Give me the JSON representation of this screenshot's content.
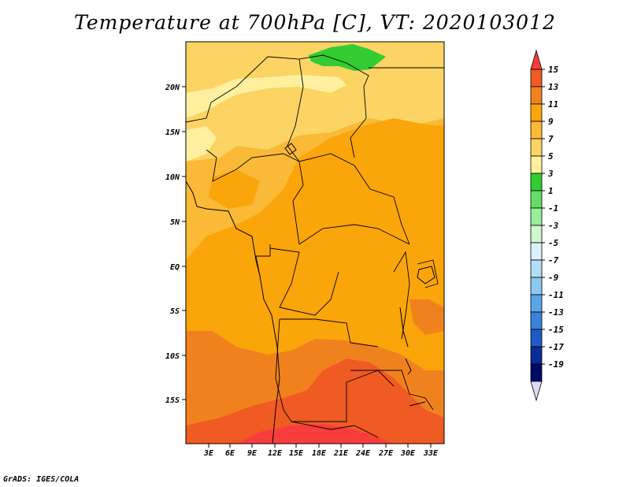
{
  "title": "Temperature at 700hPa [C], VT: 2020103012",
  "credit": "GrADS: IGES/COLA",
  "map": {
    "lat_labels": [
      "20N",
      "15N",
      "10N",
      "5N",
      "EQ",
      "5S",
      "10S",
      "15S"
    ],
    "lon_labels": [
      "3E",
      "6E",
      "9E",
      "12E",
      "15E",
      "18E",
      "21E",
      "24E",
      "27E",
      "30E",
      "33E"
    ]
  },
  "colorbar": {
    "labels": [
      "15",
      "13",
      "11",
      "9",
      "7",
      "5",
      "3",
      "1",
      "-1",
      "-3",
      "-5",
      "-7",
      "-9",
      "-11",
      "-13",
      "-15",
      "-17",
      "-19"
    ],
    "colors": [
      "#fa3c3c",
      "#f05a23",
      "#f0821e",
      "#faa50a",
      "#fab937",
      "#fcd464",
      "#fff0a0",
      "#33cc33",
      "#66dd66",
      "#99ee99",
      "#d0f7d0",
      "#dcf0fa",
      "#b4dcf5",
      "#8cc8f0",
      "#5aa5e6",
      "#3c82dc",
      "#1e5ac8",
      "#0a2d96",
      "#000a64",
      "#dcdcf5"
    ]
  }
}
